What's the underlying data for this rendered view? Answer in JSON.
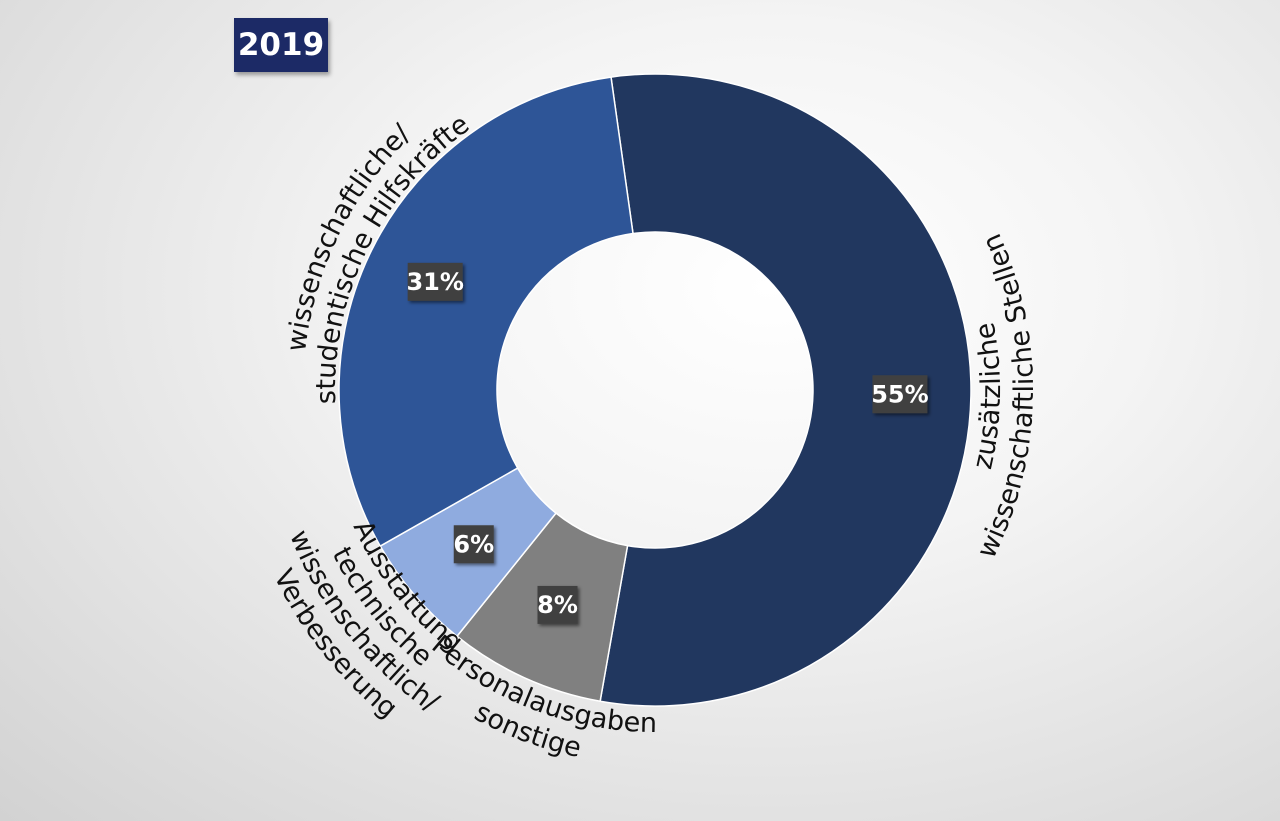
{
  "header": {
    "year": "2019"
  },
  "chart_data": {
    "type": "pie",
    "variant": "donut",
    "title": "2019",
    "start_angle_deg": -8,
    "direction": "clockwise",
    "categories": [
      "zusätzliche wissenschaftliche Stellen",
      "sonstige Personalausgaben",
      "Verbesserung wissenschaftlich/ technische Ausstattung",
      "wissenschaftliche/ studentische Hilfskräfte"
    ],
    "values": [
      55,
      8,
      6,
      31
    ],
    "value_labels": [
      "55%",
      "8%",
      "6%",
      "31%"
    ],
    "label_lines": [
      [
        "zusätzliche",
        "wissenschaftliche Stellen"
      ],
      [
        "sonstige",
        "Personalausgaben"
      ],
      [
        "Verbesserung",
        "wissenschaftlich/",
        "technische",
        "Ausstattung"
      ],
      [
        "wissenschaftliche/",
        "studentische Hilfskräfte"
      ]
    ],
    "colors": [
      "#21375f",
      "#808080",
      "#8fabdf",
      "#2e5597"
    ],
    "legend": "none",
    "grid": false
  }
}
